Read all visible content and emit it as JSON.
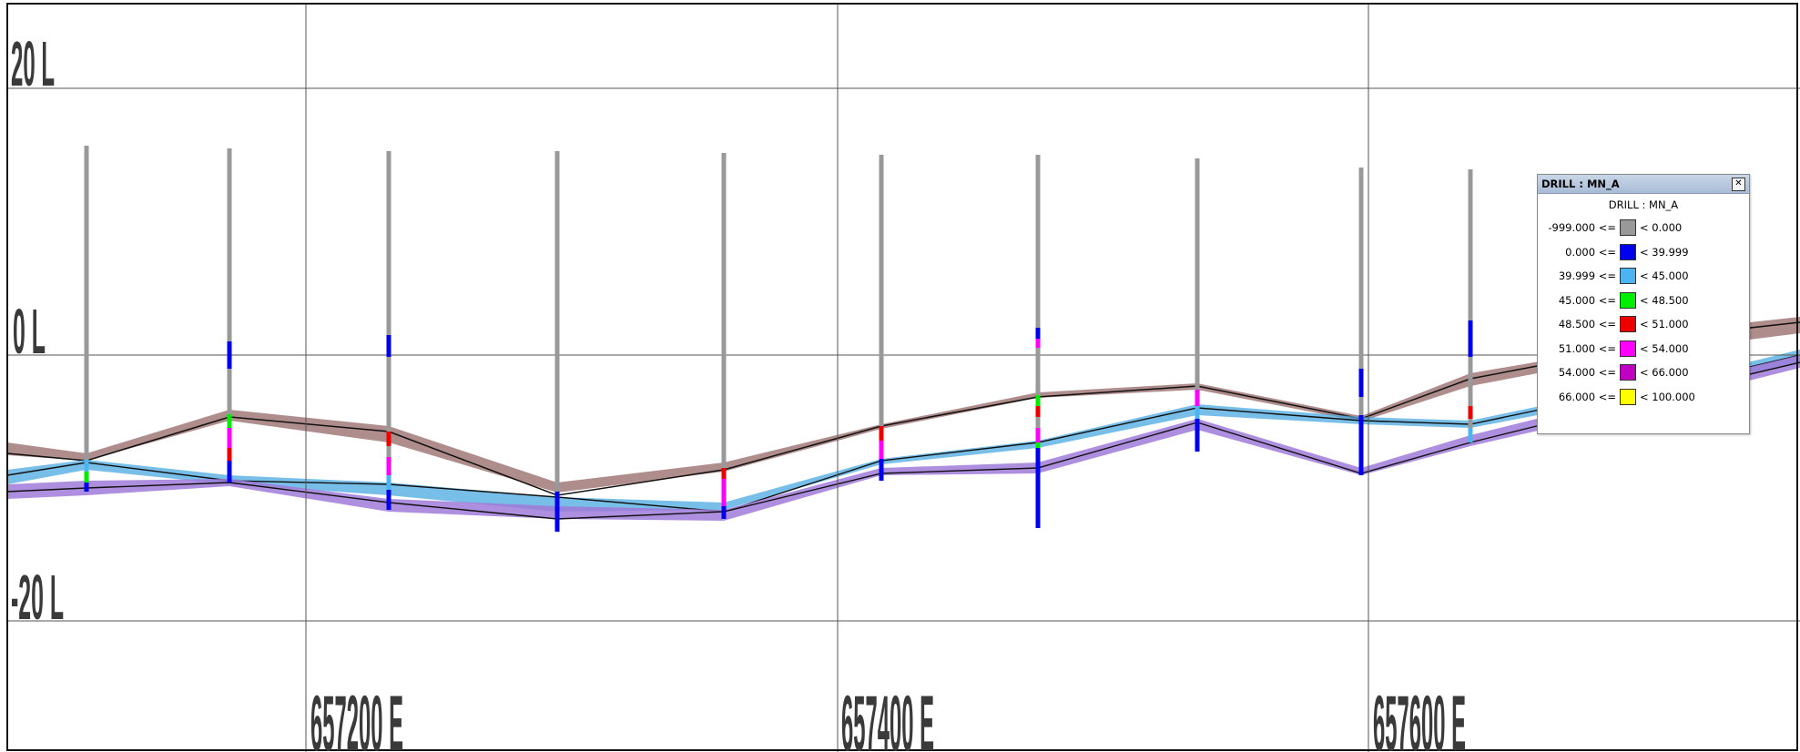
{
  "section": {
    "elevation_labels": [
      "20 L",
      "0 L",
      "-20 L"
    ],
    "easting_labels": [
      "657200 E",
      "657400 E",
      "657600 E"
    ]
  },
  "colors": {
    "background": "#ffffff",
    "grid": "#555555",
    "drillhole_trace": "#999999",
    "upper_surface": "#a6817f",
    "middle_surface": "#4aa8e0",
    "lower_surface": "#a07ad8"
  },
  "legend": {
    "title": "DRILL : MN_A",
    "subtitle": "DRILL : MN_A",
    "close_icon": "close-icon",
    "ranges": [
      {
        "low": "-999.000 <=",
        "high": "< 0.000",
        "color": "#999999"
      },
      {
        "low": "0.000 <=",
        "high": "< 39.999",
        "color": "#0000ee"
      },
      {
        "low": "39.999 <=",
        "high": "< 45.000",
        "color": "#4cb4f0"
      },
      {
        "low": "45.000 <=",
        "high": "< 48.500",
        "color": "#00ee00"
      },
      {
        "low": "48.500 <=",
        "high": "< 51.000",
        "color": "#ee0000"
      },
      {
        "low": "51.000 <=",
        "high": "< 54.000",
        "color": "#ff00ff"
      },
      {
        "low": "54.000 <=",
        "high": "< 66.000",
        "color": "#c000c0"
      },
      {
        "low": "66.000 <=",
        "high": "< 100.000",
        "color": "#ffff00"
      }
    ]
  }
}
